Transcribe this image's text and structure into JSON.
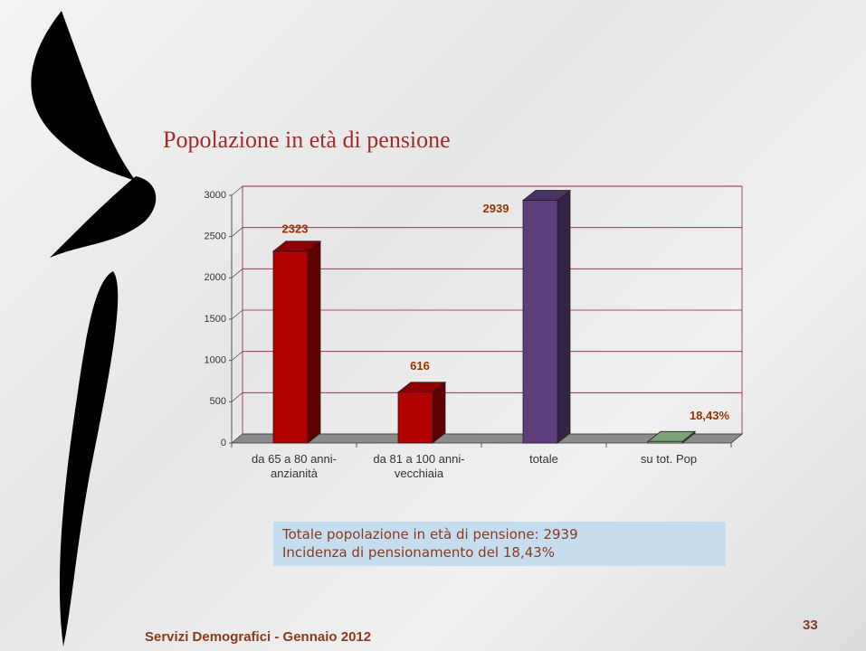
{
  "chart_data": {
    "type": "bar",
    "title": "Popolazione in età di pensione",
    "categories": [
      "da 65 a 80 anni-\nanzianità",
      "da 81 a 100 anni-\nvecchiaia",
      "totale",
      "su tot. Pop"
    ],
    "values": [
      2323,
      616,
      2939,
      18.43
    ],
    "value_labels": [
      "2323",
      "616",
      "2939",
      "18,43%"
    ],
    "colors": [
      "#b00000",
      "#b00000",
      "#5e3f7e",
      "#99cc99"
    ],
    "ylim": [
      0,
      3000
    ],
    "yticks": [
      0,
      500,
      1000,
      1500,
      2000,
      2500,
      3000
    ],
    "grid": true
  },
  "text_box": [
    "Totale popolazione in età di pensione: 2939",
    "Incidenza di pensionamento del 18,43%"
  ],
  "footer": "Servizi Demografici - Gennaio 2012",
  "page_number": "33"
}
